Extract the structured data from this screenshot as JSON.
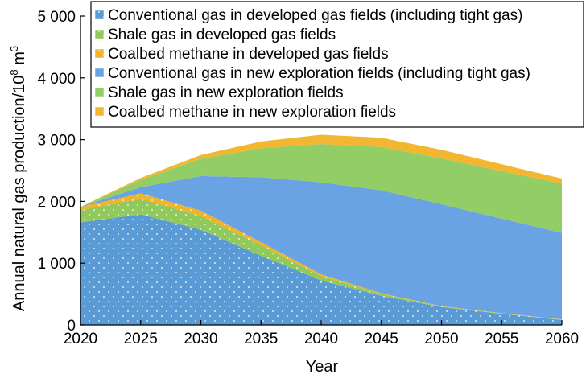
{
  "chart_data": {
    "type": "area",
    "stacked": true,
    "x": [
      2020,
      2025,
      2030,
      2035,
      2040,
      2045,
      2050,
      2055,
      2060
    ],
    "xlabel": "Year",
    "ylabel_prefix": "Annual natural gas production/10",
    "ylabel_exp": "8",
    "ylabel_suffix": " m",
    "ylabel_exp2": "3",
    "xlim": [
      2020,
      2060
    ],
    "ylim": [
      0,
      5000
    ],
    "xticks": [
      2020,
      2025,
      2030,
      2035,
      2040,
      2045,
      2050,
      2055,
      2060
    ],
    "yticks": [
      0,
      1000,
      2000,
      3000,
      4000,
      5000
    ],
    "ytick_labels": [
      "0",
      "1 000",
      "2 000",
      "3 000",
      "4 000",
      "5 000"
    ],
    "legend_position": "top",
    "series": [
      {
        "name": "Conventional gas in developed gas fields (including tight gas)",
        "color": "#5b9bd5",
        "pattern": "dots",
        "values": [
          1660,
          1790,
          1540,
          1120,
          720,
          470,
          290,
          180,
          80
        ]
      },
      {
        "name": "Shale gas in developed gas fields",
        "color": "#92c95c",
        "pattern": "dots",
        "values": [
          200,
          250,
          220,
          170,
          70,
          30,
          10,
          5,
          5
        ]
      },
      {
        "name": "Coalbed methane in developed gas fields",
        "color": "#f0b429",
        "pattern": "dots",
        "values": [
          50,
          90,
          90,
          50,
          30,
          10,
          5,
          5,
          5
        ]
      },
      {
        "name": "Conventional gas in new exploration fields (including tight gas)",
        "color": "#6aa3e3",
        "pattern": "none",
        "values": [
          0,
          100,
          560,
          1050,
          1490,
          1670,
          1650,
          1530,
          1400
        ]
      },
      {
        "name": "Shale gas in new exploration fields",
        "color": "#92cd66",
        "pattern": "none",
        "values": [
          0,
          120,
          280,
          470,
          620,
          700,
          740,
          770,
          800
        ]
      },
      {
        "name": "Coalbed methane in new exploration fields",
        "color": "#f2b630",
        "pattern": "none",
        "values": [
          0,
          30,
          60,
          110,
          150,
          150,
          140,
          110,
          80
        ]
      }
    ]
  }
}
